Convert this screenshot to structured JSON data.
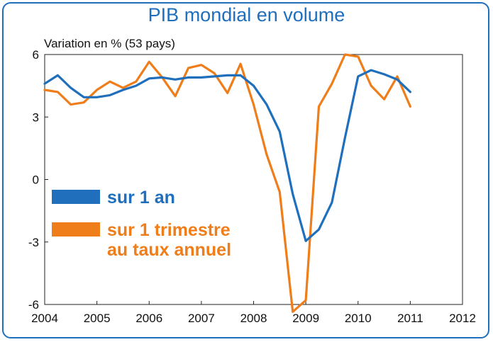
{
  "chart_data": {
    "type": "line",
    "title": "PIB mondial en volume",
    "ylabel": "Variation en % (53 pays)",
    "xlabel": "",
    "xlim": [
      2004,
      2012
    ],
    "ylim": [
      -6,
      6
    ],
    "x_ticks": [
      "2004",
      "2005",
      "2006",
      "2007",
      "2008",
      "2009",
      "2010",
      "2011",
      "2012"
    ],
    "y_ticks": [
      "6",
      "3",
      "0",
      "-3",
      "-6"
    ],
    "grid": false,
    "legend_position": "left-center",
    "series": [
      {
        "name": "sur 1 an",
        "color": "#1f6fbd",
        "x": [
          2004.0,
          2004.25,
          2004.5,
          2004.75,
          2005.0,
          2005.25,
          2005.5,
          2005.75,
          2006.0,
          2006.25,
          2006.5,
          2006.75,
          2007.0,
          2007.25,
          2007.5,
          2007.75,
          2008.0,
          2008.25,
          2008.5,
          2008.75,
          2009.0,
          2009.25,
          2009.5,
          2009.75,
          2010.0,
          2010.25,
          2010.5,
          2010.75,
          2011.0
        ],
        "values": [
          4.6,
          5.0,
          4.4,
          3.95,
          3.95,
          4.05,
          4.3,
          4.5,
          4.85,
          4.9,
          4.8,
          4.9,
          4.9,
          4.95,
          5.0,
          5.0,
          4.5,
          3.6,
          2.3,
          -0.7,
          -2.95,
          -2.4,
          -1.1,
          2.0,
          4.95,
          5.25,
          5.05,
          4.8,
          4.2
        ]
      },
      {
        "name": "sur 1 trimestre\nau taux annuel",
        "label_lines": [
          "sur 1 trimestre",
          "au taux annuel"
        ],
        "color": "#ef7d1a",
        "x": [
          2004.0,
          2004.25,
          2004.5,
          2004.75,
          2005.0,
          2005.25,
          2005.5,
          2005.75,
          2006.0,
          2006.25,
          2006.5,
          2006.75,
          2007.0,
          2007.25,
          2007.5,
          2007.75,
          2008.0,
          2008.25,
          2008.5,
          2008.75,
          2009.0,
          2009.25,
          2009.5,
          2009.75,
          2010.0,
          2010.25,
          2010.5,
          2010.75,
          2011.0
        ],
        "values": [
          4.3,
          4.2,
          3.6,
          3.7,
          4.3,
          4.7,
          4.4,
          4.7,
          5.65,
          4.9,
          4.0,
          5.35,
          5.5,
          5.1,
          4.15,
          5.55,
          3.6,
          1.2,
          -0.6,
          -6.35,
          -5.8,
          3.5,
          4.6,
          6.0,
          5.9,
          4.5,
          3.85,
          4.95,
          3.5
        ]
      }
    ]
  }
}
